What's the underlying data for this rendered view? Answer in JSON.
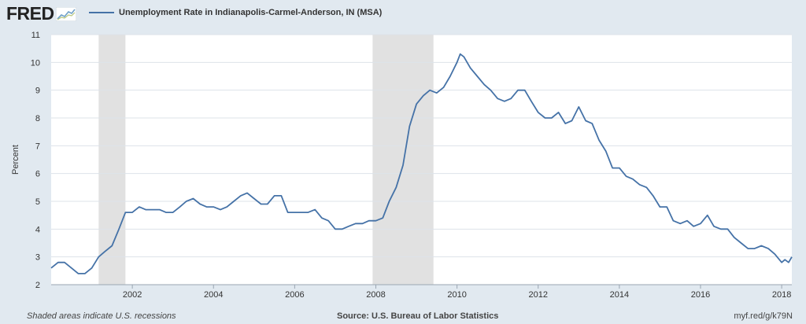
{
  "header": {
    "logo_text": "FRED",
    "logo_icon": "trend-line-icon"
  },
  "colors": {
    "series": "#4572a7",
    "recession": "#e1e1e1",
    "plot_bg": "#ffffff",
    "page_bg": "#e1e9f0",
    "grid": "#dde3ea"
  },
  "chart_data": {
    "type": "line",
    "title": "",
    "xlabel": "",
    "ylabel": "Percent",
    "xlim": [
      2000.0,
      2018.25
    ],
    "ylim": [
      2,
      11
    ],
    "yticks": [
      2,
      3,
      4,
      5,
      6,
      7,
      8,
      9,
      10,
      11
    ],
    "xticks": [
      2002,
      2004,
      2006,
      2008,
      2010,
      2012,
      2014,
      2016,
      2018
    ],
    "grid": "horizontal",
    "legend": "top-left",
    "series": [
      {
        "name": "Unemployment Rate in Indianapolis-Carmel-Anderson, IN (MSA)",
        "x": [
          2000.0,
          2000.17,
          2000.33,
          2000.5,
          2000.67,
          2000.83,
          2001.0,
          2001.17,
          2001.33,
          2001.5,
          2001.67,
          2001.83,
          2002.0,
          2002.17,
          2002.33,
          2002.5,
          2002.67,
          2002.83,
          2003.0,
          2003.17,
          2003.33,
          2003.5,
          2003.67,
          2003.83,
          2004.0,
          2004.17,
          2004.33,
          2004.5,
          2004.67,
          2004.83,
          2005.0,
          2005.17,
          2005.33,
          2005.5,
          2005.67,
          2005.83,
          2006.0,
          2006.17,
          2006.33,
          2006.5,
          2006.67,
          2006.83,
          2007.0,
          2007.17,
          2007.33,
          2007.5,
          2007.67,
          2007.83,
          2008.0,
          2008.17,
          2008.33,
          2008.5,
          2008.67,
          2008.83,
          2009.0,
          2009.17,
          2009.33,
          2009.5,
          2009.67,
          2009.83,
          2010.0,
          2010.08,
          2010.17,
          2010.33,
          2010.5,
          2010.67,
          2010.83,
          2011.0,
          2011.17,
          2011.33,
          2011.5,
          2011.67,
          2011.83,
          2012.0,
          2012.17,
          2012.33,
          2012.5,
          2012.67,
          2012.83,
          2013.0,
          2013.17,
          2013.33,
          2013.5,
          2013.67,
          2013.83,
          2014.0,
          2014.17,
          2014.33,
          2014.5,
          2014.67,
          2014.83,
          2015.0,
          2015.17,
          2015.33,
          2015.5,
          2015.67,
          2015.83,
          2016.0,
          2016.17,
          2016.33,
          2016.5,
          2016.67,
          2016.83,
          2017.0,
          2017.17,
          2017.33,
          2017.5,
          2017.67,
          2017.83,
          2018.0,
          2018.08,
          2018.17,
          2018.25
        ],
        "values": [
          2.6,
          2.8,
          2.8,
          2.6,
          2.4,
          2.4,
          2.6,
          3.0,
          3.2,
          3.4,
          4.0,
          4.6,
          4.6,
          4.8,
          4.7,
          4.7,
          4.7,
          4.6,
          4.6,
          4.8,
          5.0,
          5.1,
          4.9,
          4.8,
          4.8,
          4.7,
          4.8,
          5.0,
          5.2,
          5.3,
          5.1,
          4.9,
          4.9,
          5.2,
          5.2,
          4.6,
          4.6,
          4.6,
          4.6,
          4.7,
          4.4,
          4.3,
          4.0,
          4.0,
          4.1,
          4.2,
          4.2,
          4.3,
          4.3,
          4.4,
          5.0,
          5.5,
          6.3,
          7.7,
          8.5,
          8.8,
          9.0,
          8.9,
          9.1,
          9.5,
          10.0,
          10.3,
          10.2,
          9.8,
          9.5,
          9.2,
          9.0,
          8.7,
          8.6,
          8.7,
          9.0,
          9.0,
          8.6,
          8.2,
          8.0,
          8.0,
          8.2,
          7.8,
          7.9,
          8.4,
          7.9,
          7.8,
          7.2,
          6.8,
          6.2,
          6.2,
          5.9,
          5.8,
          5.6,
          5.5,
          5.2,
          4.8,
          4.8,
          4.3,
          4.2,
          4.3,
          4.1,
          4.2,
          4.5,
          4.1,
          4.0,
          4.0,
          3.7,
          3.5,
          3.3,
          3.3,
          3.4,
          3.3,
          3.1,
          2.8,
          2.9,
          2.8,
          3.0
        ]
      }
    ],
    "recessions": [
      [
        2001.17,
        2001.83
      ],
      [
        2007.92,
        2009.42
      ]
    ]
  },
  "footer": {
    "left_note": "Shaded areas indicate U.S. recessions",
    "source": "Source: U.S. Bureau of Labor Statistics",
    "short_url": "myf.red/g/k79N"
  }
}
